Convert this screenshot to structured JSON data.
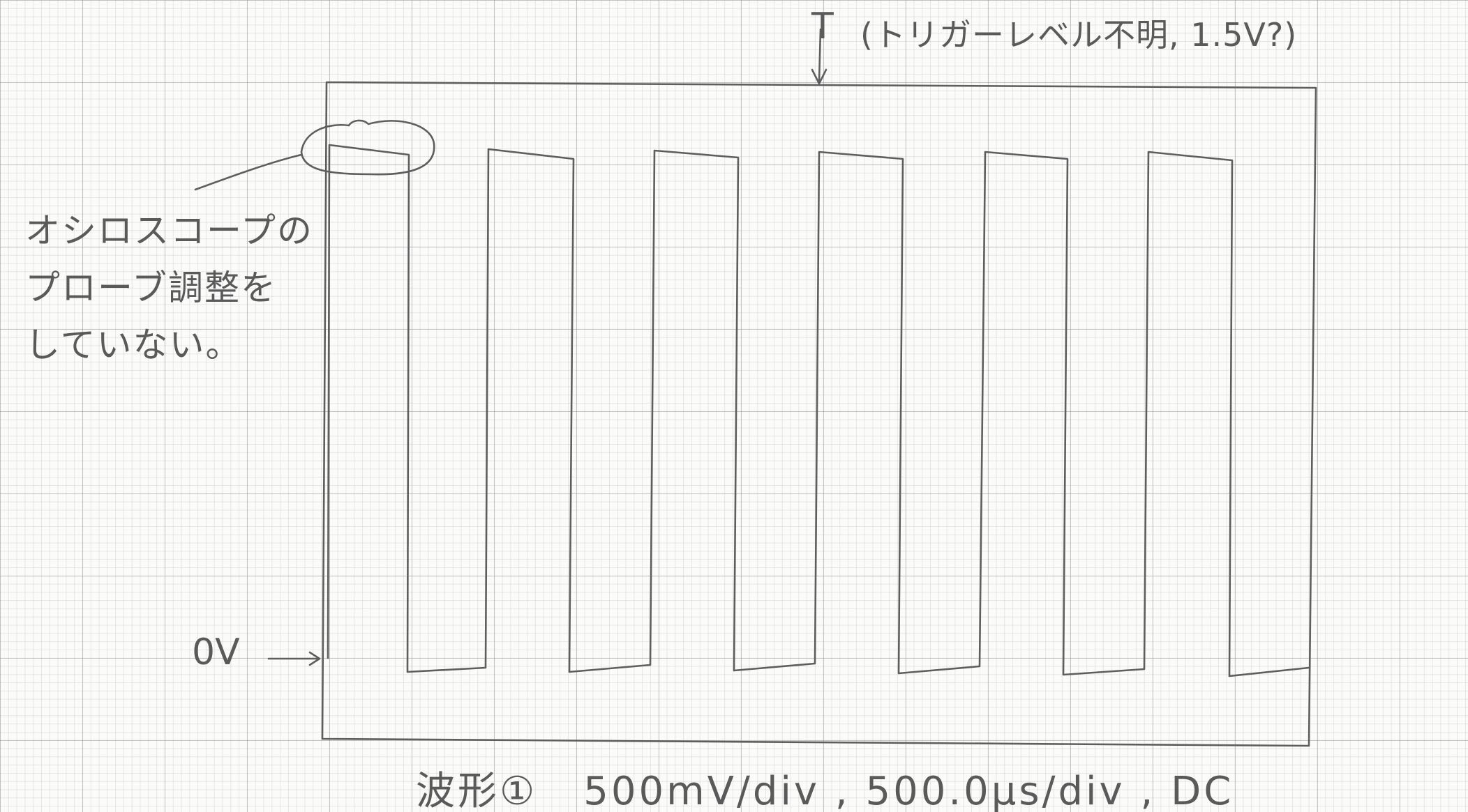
{
  "trigger": {
    "marker": "T",
    "note": "(トリガーレベル不明, 1.5V?)"
  },
  "annotation": {
    "lines": [
      "オシロスコープの",
      "プローブ調整を",
      "していない。"
    ]
  },
  "zero_level": {
    "label": "0V"
  },
  "caption": {
    "waveform": "波形①",
    "settings": "500mV/div , 500.0μs/div , DC"
  },
  "waveform": {
    "type": "square",
    "pulses": 6
  },
  "colors": {
    "pencil": "#5a5a5a",
    "grid": "#8c8c8c"
  }
}
